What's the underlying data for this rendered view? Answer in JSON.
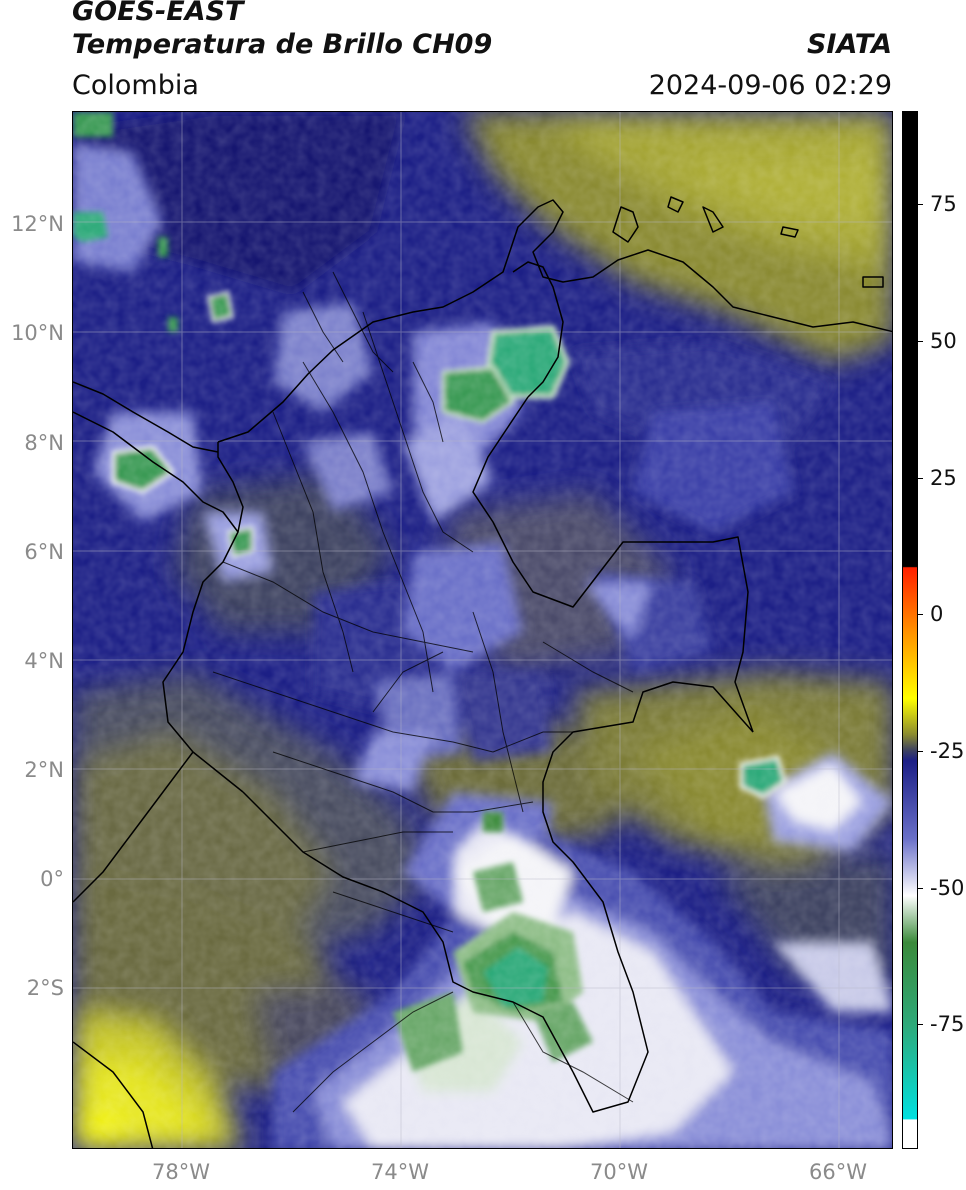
{
  "header": {
    "title_line1": "GOES-EAST",
    "title_line2": "Temperatura de Brillo CH09",
    "organization": "SIATA",
    "region": "Colombia",
    "timestamp": "2024-09-06 02:29"
  },
  "map": {
    "lat_labels": [
      "12°N",
      "10°N",
      "8°N",
      "6°N",
      "4°N",
      "2°N",
      "0°",
      "2°S"
    ],
    "lon_labels": [
      "78°W",
      "74°W",
      "70°W",
      "66°W"
    ],
    "colors": {
      "cloud_top_cold": "#2eaa7a",
      "deep_convection": "#3a8a3a",
      "cirrus_white": "#f4f4f8",
      "mid_blue": "#1c1f86",
      "warm_olive": "#8a8a30",
      "warm_yellow": "#e6e620",
      "slate": "#3d4260"
    }
  },
  "colorbar": {
    "tick_labels": [
      "75",
      "50",
      "25",
      "0",
      "-25",
      "-50",
      "-75"
    ],
    "colors": [
      "#000000",
      "#000000",
      "#ff2000",
      "#ff9000",
      "#ffff00",
      "#8a8a30",
      "#3d4260",
      "#1c1f86",
      "#6a70c8",
      "#ffffff",
      "#3a8a3a",
      "#2eaa7a",
      "#00e0e0",
      "#ffffff"
    ]
  }
}
